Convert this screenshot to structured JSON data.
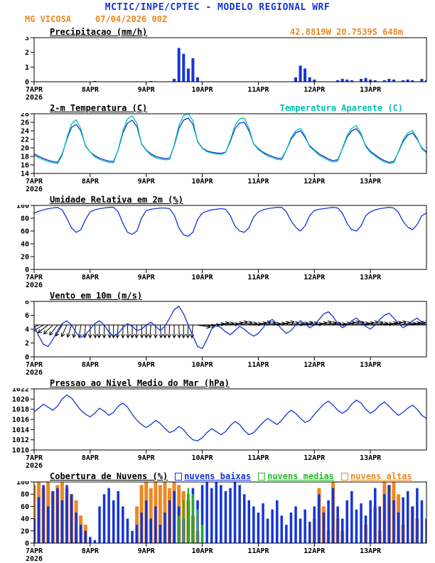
{
  "header": {
    "title": "MCTIC/INPE/CPTEC - MODELO REGIONAL WRF",
    "station": "MG VICOSA",
    "run": "07/04/2026 00Z",
    "coords": "42.8819W 20.7539S 648m"
  },
  "colors": {
    "line_blue": "#1535d6",
    "cyan": "#00c0b0",
    "orange": "#ee8822",
    "green": "#22bb22",
    "axis": "#000000"
  },
  "x_axis": {
    "step_hours": 2,
    "total_hours": 168,
    "ticks": [
      {
        "hour": 0,
        "label": "7APR",
        "year": "2026"
      },
      {
        "hour": 24,
        "label": "8APR"
      },
      {
        "hour": 48,
        "label": "9APR"
      },
      {
        "hour": 72,
        "label": "10APR"
      },
      {
        "hour": 96,
        "label": "11APR"
      },
      {
        "hour": 120,
        "label": "12APR"
      },
      {
        "hour": 144,
        "label": "13APR"
      }
    ]
  },
  "chart_data": [
    {
      "id": "precip",
      "type": "bar",
      "title": "Precipitacao (mm/h)",
      "ylim": [
        0,
        3
      ],
      "yticks": [
        0,
        1,
        2,
        3
      ],
      "series": [
        {
          "name": "precipitacao",
          "color": "#1535d6",
          "bw": 4,
          "values": [
            0,
            0,
            0,
            0,
            0,
            0,
            0,
            0,
            0,
            0,
            0,
            0,
            0,
            0.05,
            0,
            0,
            0,
            0,
            0,
            0,
            0,
            0,
            0,
            0,
            0,
            0.05,
            0,
            0,
            0,
            0,
            0.2,
            2.3,
            1.9,
            0.9,
            1.6,
            0.3,
            0,
            0,
            0,
            0,
            0,
            0,
            0,
            0,
            0,
            0,
            0,
            0,
            0,
            0,
            0,
            0,
            0,
            0,
            0,
            0,
            0.3,
            1.1,
            0.9,
            0.3,
            0.15,
            0,
            0,
            0,
            0,
            0.1,
            0.2,
            0.15,
            0.1,
            0,
            0.2,
            0.25,
            0.15,
            0.1,
            0,
            0.1,
            0.2,
            0.15,
            0,
            0.1,
            0.15,
            0.1,
            0,
            0.2,
            0.1
          ]
        }
      ]
    },
    {
      "id": "temp",
      "type": "line",
      "title": "2-m Temperatura (C)",
      "right_label": "Temperatura Aparente (C)",
      "ylim": [
        14,
        28
      ],
      "yticks": [
        14,
        16,
        18,
        20,
        22,
        24,
        26,
        28
      ],
      "series": [
        {
          "name": "temperatura",
          "color": "#1535d6",
          "values": [
            18.6,
            18.0,
            17.5,
            17.1,
            16.8,
            16.6,
            18.5,
            22.0,
            24.8,
            25.5,
            24.0,
            20.5,
            19.0,
            18.2,
            17.6,
            17.2,
            16.9,
            16.8,
            19.5,
            23.5,
            25.8,
            26.5,
            25.0,
            21.0,
            19.5,
            18.6,
            18.0,
            17.7,
            17.5,
            17.6,
            20.5,
            24.5,
            26.5,
            27.0,
            25.5,
            21.5,
            20.0,
            19.3,
            19.0,
            18.8,
            18.7,
            19.0,
            21.5,
            24.5,
            25.8,
            26.0,
            24.0,
            21.0,
            19.8,
            19.0,
            18.4,
            18.0,
            17.6,
            17.5,
            19.5,
            22.0,
            23.5,
            24.0,
            22.5,
            20.5,
            19.5,
            18.6,
            18.0,
            17.4,
            17.0,
            17.2,
            19.8,
            22.5,
            24.0,
            24.5,
            23.0,
            20.5,
            19.2,
            18.4,
            17.6,
            17.0,
            16.6,
            16.8,
            19.0,
            21.5,
            23.0,
            23.5,
            22.0,
            20.0,
            19.0
          ]
        },
        {
          "name": "temperatura-aparente",
          "color": "#00c0b0",
          "values": [
            18.3,
            17.7,
            17.2,
            16.8,
            16.5,
            16.3,
            18.2,
            22.3,
            25.6,
            26.6,
            24.5,
            20.4,
            19.0,
            17.9,
            17.3,
            16.9,
            16.6,
            16.5,
            19.6,
            24.0,
            26.8,
            27.5,
            25.8,
            20.9,
            19.4,
            18.3,
            17.7,
            17.4,
            17.2,
            17.3,
            20.7,
            25.2,
            27.6,
            28.0,
            26.4,
            21.4,
            19.9,
            19.1,
            18.8,
            18.6,
            18.5,
            18.9,
            21.8,
            25.2,
            26.8,
            27.0,
            24.6,
            20.9,
            19.6,
            18.8,
            18.1,
            17.7,
            17.3,
            17.2,
            19.5,
            22.3,
            24.0,
            24.6,
            22.9,
            20.3,
            19.3,
            18.3,
            17.7,
            17.1,
            16.7,
            16.9,
            19.9,
            22.9,
            24.6,
            25.2,
            23.4,
            20.3,
            18.9,
            18.1,
            17.3,
            16.7,
            16.3,
            16.5,
            19.1,
            21.9,
            23.5,
            24.1,
            22.3,
            19.8,
            18.8
          ]
        }
      ]
    },
    {
      "id": "umidade",
      "type": "line",
      "title": "Umidade Relativa em 2m (%)",
      "ylim": [
        0,
        100
      ],
      "yticks": [
        0,
        20,
        40,
        60,
        80,
        100
      ],
      "series": [
        {
          "name": "umidade-relativa",
          "color": "#1535d6",
          "values": [
            88,
            91,
            93,
            95,
            96,
            97,
            93,
            80,
            65,
            58,
            62,
            78,
            90,
            93,
            95,
            96,
            97,
            97,
            90,
            72,
            58,
            55,
            60,
            80,
            92,
            94,
            95,
            96,
            96,
            95,
            85,
            65,
            54,
            52,
            58,
            78,
            88,
            91,
            93,
            94,
            95,
            94,
            84,
            68,
            60,
            58,
            65,
            82,
            90,
            93,
            95,
            96,
            97,
            97,
            90,
            76,
            66,
            60,
            68,
            84,
            92,
            94,
            95,
            96,
            97,
            96,
            88,
            72,
            62,
            60,
            68,
            84,
            90,
            93,
            95,
            96,
            97,
            96,
            89,
            75,
            66,
            62,
            70,
            84,
            88
          ]
        }
      ]
    },
    {
      "id": "vento",
      "type": "line",
      "title": "Vento em 10m (m/s)",
      "ylim": [
        0,
        8
      ],
      "yticks": [
        0,
        2,
        4,
        6,
        8
      ],
      "series": [
        {
          "name": "velocidade-vento",
          "color": "#1535d6",
          "values": [
            4.5,
            3.0,
            1.8,
            1.5,
            2.5,
            3.8,
            4.8,
            5.2,
            4.6,
            3.5,
            2.8,
            3.2,
            4.0,
            4.8,
            5.2,
            4.6,
            3.6,
            3.0,
            3.4,
            4.2,
            4.8,
            4.4,
            3.8,
            4.0,
            4.6,
            5.0,
            4.4,
            3.8,
            4.4,
            5.6,
            6.8,
            7.3,
            6.2,
            4.6,
            3.0,
            1.5,
            1.2,
            2.5,
            4.0,
            4.6,
            4.2,
            3.6,
            3.2,
            3.8,
            4.4,
            4.0,
            3.4,
            3.0,
            3.4,
            4.2,
            5.0,
            5.4,
            4.8,
            4.0,
            3.4,
            3.8,
            4.6,
            5.2,
            4.8,
            4.2,
            4.6,
            5.4,
            6.2,
            6.5,
            5.8,
            4.8,
            4.2,
            4.6,
            5.2,
            5.6,
            5.0,
            4.4,
            4.0,
            4.6,
            5.4,
            6.0,
            6.3,
            5.6,
            4.8,
            4.2,
            4.6,
            5.2,
            5.6,
            5.0,
            4.6
          ]
        }
      ],
      "barbs": {
        "anchor": 4.6,
        "color": "#000000",
        "angles": [
          200,
          205,
          210,
          218,
          225,
          232,
          240,
          246,
          252,
          258,
          262,
          266,
          270,
          272,
          268,
          270,
          274,
          270,
          266,
          270,
          272,
          270,
          268,
          272,
          270,
          266,
          270,
          274,
          270,
          268,
          270,
          272,
          270,
          268,
          265,
          350,
          355,
          0,
          5,
          10,
          8,
          5,
          10,
          15,
          12,
          8,
          5,
          10,
          14,
          10,
          6,
          8,
          12,
          15,
          10,
          5,
          8,
          12,
          10,
          6,
          10,
          14,
          10,
          8,
          5,
          8,
          12,
          15,
          12,
          8,
          10,
          14,
          12,
          8,
          6,
          10,
          12,
          15,
          10,
          8,
          10,
          12,
          14,
          10,
          8
        ]
      }
    },
    {
      "id": "pressao",
      "type": "line",
      "title": "Pressao ao Nivel Medio do Mar (hPa)",
      "ylim": [
        1010,
        1022
      ],
      "yticks": [
        1010,
        1012,
        1014,
        1016,
        1018,
        1020,
        1022
      ],
      "series": [
        {
          "name": "pressao-nivel-mar",
          "color": "#1535d6",
          "values": [
            1017.5,
            1018.2,
            1019.0,
            1018.4,
            1017.8,
            1018.6,
            1020.0,
            1020.8,
            1020.2,
            1019.0,
            1017.8,
            1017.0,
            1016.5,
            1017.2,
            1018.2,
            1017.6,
            1016.8,
            1017.4,
            1018.6,
            1019.2,
            1018.4,
            1017.0,
            1015.8,
            1015.0,
            1014.4,
            1015.0,
            1015.8,
            1015.2,
            1014.2,
            1013.4,
            1013.8,
            1014.6,
            1014.0,
            1012.8,
            1012.0,
            1011.8,
            1012.4,
            1013.4,
            1014.2,
            1013.6,
            1013.0,
            1013.6,
            1014.8,
            1015.6,
            1015.0,
            1013.8,
            1013.0,
            1013.4,
            1014.4,
            1015.4,
            1016.2,
            1015.6,
            1015.0,
            1015.8,
            1017.0,
            1017.8,
            1017.2,
            1016.2,
            1015.4,
            1015.8,
            1017.0,
            1018.0,
            1019.0,
            1019.6,
            1018.8,
            1017.8,
            1017.2,
            1017.8,
            1019.0,
            1019.8,
            1019.2,
            1018.0,
            1017.2,
            1017.8,
            1018.8,
            1019.4,
            1018.6,
            1017.6,
            1016.8,
            1017.4,
            1018.2,
            1018.8,
            1018.0,
            1016.8,
            1016.2
          ]
        }
      ]
    },
    {
      "id": "nuvens",
      "type": "bar",
      "title": "Cobertura de Nuvens (%)",
      "ylim": [
        0,
        100
      ],
      "yticks": [
        0,
        20,
        40,
        60,
        80,
        100
      ],
      "legend": [
        {
          "label": "nuvens baixas",
          "color": "#1535d6"
        },
        {
          "label": "nuvens medias",
          "color": "#22bb22"
        },
        {
          "label": "nuvens altas",
          "color": "#ee8822"
        }
      ],
      "series": [
        {
          "name": "nuvens-altas",
          "color": "#ee8822",
          "bw": 5,
          "values": [
            95,
            100,
            90,
            100,
            85,
            95,
            100,
            90,
            80,
            70,
            45,
            30,
            0,
            0,
            0,
            0,
            0,
            0,
            0,
            0,
            0,
            0,
            60,
            95,
            100,
            90,
            100,
            95,
            100,
            90,
            100,
            95,
            85,
            70,
            45,
            20,
            0,
            0,
            0,
            0,
            0,
            0,
            0,
            0,
            0,
            0,
            0,
            0,
            0,
            0,
            0,
            0,
            0,
            0,
            0,
            0,
            0,
            0,
            0,
            0,
            40,
            90,
            60,
            20,
            100,
            40,
            20,
            0,
            0,
            0,
            0,
            30,
            0,
            60,
            20,
            100,
            95,
            100,
            80,
            30,
            0,
            60,
            40,
            0,
            0
          ]
        },
        {
          "name": "nuvens-baixas",
          "color": "#1535d6",
          "bw": 3.5,
          "values": [
            40,
            75,
            95,
            60,
            85,
            90,
            70,
            95,
            80,
            50,
            30,
            20,
            10,
            5,
            60,
            80,
            90,
            70,
            85,
            60,
            40,
            20,
            30,
            50,
            70,
            40,
            60,
            30,
            50,
            70,
            85,
            60,
            40,
            80,
            90,
            70,
            95,
            100,
            90,
            100,
            95,
            85,
            90,
            100,
            95,
            80,
            70,
            60,
            50,
            65,
            40,
            55,
            70,
            45,
            30,
            50,
            60,
            40,
            55,
            35,
            60,
            80,
            50,
            70,
            90,
            60,
            40,
            70,
            85,
            55,
            65,
            45,
            70,
            90,
            60,
            80,
            95,
            70,
            50,
            75,
            85,
            60,
            90,
            70,
            40
          ]
        },
        {
          "name": "nuvens-medias",
          "color": "#22bb22",
          "bw": 2.5,
          "values": [
            0,
            0,
            0,
            0,
            0,
            0,
            0,
            0,
            0,
            0,
            0,
            0,
            0,
            0,
            0,
            0,
            0,
            0,
            0,
            0,
            0,
            0,
            0,
            0,
            0,
            0,
            0,
            0,
            0,
            0,
            0,
            45,
            70,
            90,
            80,
            55,
            30,
            0,
            0,
            0,
            0,
            0,
            0,
            0,
            0,
            0,
            0,
            0,
            0,
            0,
            0,
            0,
            0,
            0,
            0,
            0,
            0,
            0,
            0,
            0,
            0,
            0,
            0,
            0,
            0,
            0,
            0,
            0,
            0,
            0,
            0,
            0,
            0,
            0,
            0,
            0,
            0,
            0,
            0,
            0,
            0,
            0,
            0,
            0,
            0
          ]
        }
      ]
    }
  ]
}
